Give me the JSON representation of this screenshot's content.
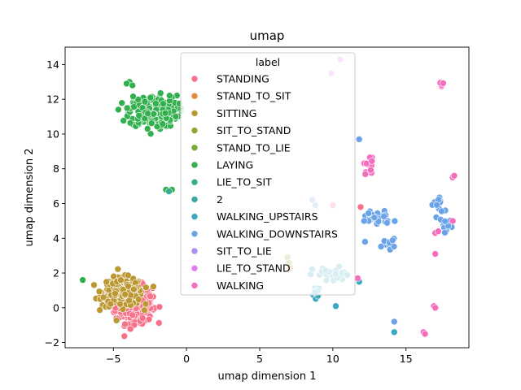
{
  "chart_data": {
    "type": "scatter",
    "title": "umap",
    "xlabel": "umap dimension 1",
    "ylabel": "umap dimension 2",
    "xlim": [
      -8.3,
      19.3
    ],
    "ylim": [
      -2.3,
      15.0
    ],
    "xticks": [
      -5,
      0,
      5,
      10,
      15
    ],
    "yticks": [
      -2,
      0,
      2,
      4,
      6,
      8,
      10,
      12,
      14
    ],
    "grid": false,
    "legend": {
      "title": "label",
      "placement": "upper-center"
    },
    "series": [
      {
        "name": "STANDING",
        "color": "#f77189",
        "clusters": [
          {
            "cx": -3.6,
            "cy": 0.2,
            "rx": 1.4,
            "ry": 1.2,
            "n": 300
          }
        ],
        "points": [
          [
            10.0,
            5.9
          ],
          [
            11.9,
            5.8
          ]
        ]
      },
      {
        "name": "STAND_TO_SIT",
        "color": "#e18a3c",
        "clusters": [],
        "points": [
          [
            7.1,
            2.3
          ]
        ]
      },
      {
        "name": "SITTING",
        "color": "#bb9832",
        "clusters": [
          {
            "cx": -4.4,
            "cy": 0.9,
            "rx": 1.5,
            "ry": 0.9,
            "n": 260
          }
        ],
        "points": []
      },
      {
        "name": "SIT_TO_STAND",
        "color": "#9da331",
        "clusters": [],
        "points": [
          [
            6.9,
            2.9
          ],
          [
            9.6,
            1.7
          ]
        ]
      },
      {
        "name": "STAND_TO_LIE",
        "color": "#76ab31",
        "clusters": [],
        "points": [
          [
            7.0,
            2.6
          ]
        ]
      },
      {
        "name": "LAYING",
        "color": "#33b04e",
        "clusters": [
          {
            "cx": -2.3,
            "cy": 11.3,
            "rx": 1.8,
            "ry": 1.0,
            "n": 280
          }
        ],
        "points": [
          [
            -3.9,
            13.0
          ],
          [
            -4.1,
            12.9
          ],
          [
            -3.7,
            12.8
          ],
          [
            -1.4,
            6.8
          ],
          [
            -1.0,
            6.8
          ],
          [
            -7.1,
            1.6
          ]
        ]
      },
      {
        "name": "LIE_TO_SIT",
        "color": "#35ad8c",
        "clusters": [],
        "points": [
          [
            -1.2,
            6.7
          ]
        ]
      },
      {
        "name": "2",
        "color": "#37aaa1",
        "clusters": [],
        "points": []
      },
      {
        "name": "WALKING_UPSTAIRS",
        "color": "#39a8c1",
        "clusters": [
          {
            "cx": 9.9,
            "cy": 1.9,
            "rx": 1.4,
            "ry": 0.5,
            "n": 35
          },
          {
            "cx": 8.9,
            "cy": 0.7,
            "rx": 0.4,
            "ry": 0.5,
            "n": 12
          }
        ],
        "points": [
          [
            10.2,
            0.1
          ],
          [
            11.8,
            1.5
          ],
          [
            14.2,
            -1.4
          ]
        ]
      },
      {
        "name": "WALKING_DOWNSTAIRS",
        "color": "#6aa3e8",
        "clusters": [
          {
            "cx": 13.0,
            "cy": 5.2,
            "rx": 1.2,
            "ry": 0.5,
            "n": 30
          },
          {
            "cx": 13.8,
            "cy": 3.7,
            "rx": 0.5,
            "ry": 0.3,
            "n": 10
          },
          {
            "cx": 17.2,
            "cy": 5.9,
            "rx": 0.5,
            "ry": 0.7,
            "n": 12
          },
          {
            "cx": 17.8,
            "cy": 4.8,
            "rx": 0.5,
            "ry": 0.5,
            "n": 10
          }
        ],
        "points": [
          [
            11.8,
            9.7
          ],
          [
            8.6,
            6.2
          ],
          [
            8.8,
            5.9
          ],
          [
            12.2,
            3.8
          ],
          [
            14.2,
            -0.8
          ]
        ]
      },
      {
        "name": "SIT_TO_LIE",
        "color": "#ac8ff2",
        "clusters": [],
        "points": []
      },
      {
        "name": "LIE_TO_STAND",
        "color": "#e17ff2",
        "clusters": [],
        "points": [
          [
            10.5,
            14.3
          ],
          [
            9.9,
            13.5
          ]
        ]
      },
      {
        "name": "WALKING",
        "color": "#f46ebe",
        "clusters": [
          {
            "cx": 12.5,
            "cy": 8.2,
            "rx": 0.4,
            "ry": 0.6,
            "n": 12
          },
          {
            "cx": 17.4,
            "cy": 12.9,
            "rx": 0.2,
            "ry": 0.2,
            "n": 6
          }
        ],
        "points": [
          [
            18.2,
            7.5
          ],
          [
            18.3,
            7.6
          ],
          [
            17.0,
            3.1
          ],
          [
            17.0,
            4.3
          ],
          [
            17.2,
            4.4
          ],
          [
            16.9,
            0.1
          ],
          [
            17.0,
            0.0
          ],
          [
            16.2,
            -1.4
          ],
          [
            16.3,
            -1.5
          ],
          [
            18.2,
            5.0
          ],
          [
            11.7,
            1.7
          ]
        ]
      }
    ]
  }
}
